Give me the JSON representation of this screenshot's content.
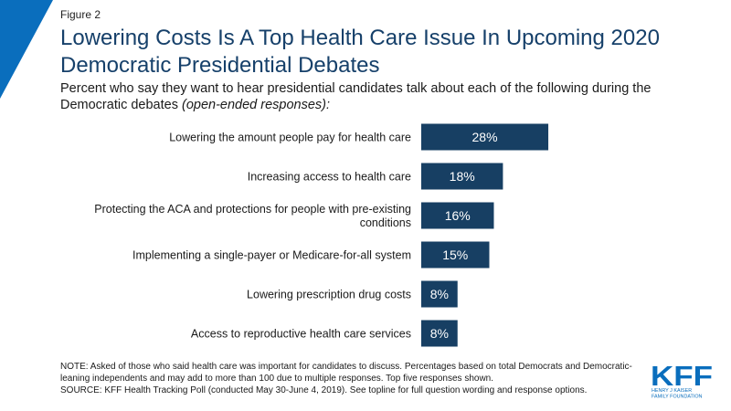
{
  "figure_label": "Figure 2",
  "title": "Lowering Costs Is A Top Health Care Issue In Upcoming 2020 Democratic Presidential Debates",
  "subtitle_main": "Percent who say they want to hear presidential candidates talk about each of the following during the Democratic debates ",
  "subtitle_italic": "(open-ended responses):",
  "note": "NOTE: Asked of those who said health care was important for candidates to discuss. Percentages based on total Democrats and Democratic-leaning independents and may add to more than 100 due to multiple responses. Top five responses shown.",
  "source": "SOURCE: KFF Health Tracking Poll (conducted May 30-June 4, 2019). See topline for full question wording and response options.",
  "logo": {
    "name": "KFF",
    "line1": "HENRY J KAISER",
    "line2": "FAMILY FOUNDATION"
  },
  "colors": {
    "bar": "#173f63",
    "title": "#16406a",
    "accent": "#0a6ebd"
  },
  "chart_data": {
    "type": "bar",
    "orientation": "horizontal",
    "categories": [
      [
        "Lowering the amount people pay for health care"
      ],
      [
        "Increasing access to health care"
      ],
      [
        "Protecting the ACA and protections for people with pre-existing",
        "conditions"
      ],
      [
        "Implementing a single-payer or Medicare-for-all system"
      ],
      [
        "Lowering prescription drug costs"
      ],
      [
        "Access to reproductive health care services"
      ]
    ],
    "values": [
      28,
      18,
      16,
      15,
      8,
      8
    ],
    "value_labels": [
      "28%",
      "18%",
      "16%",
      "15%",
      "8%",
      "8%"
    ],
    "xlim": [
      0,
      30
    ],
    "grid": false,
    "legend": "none"
  }
}
